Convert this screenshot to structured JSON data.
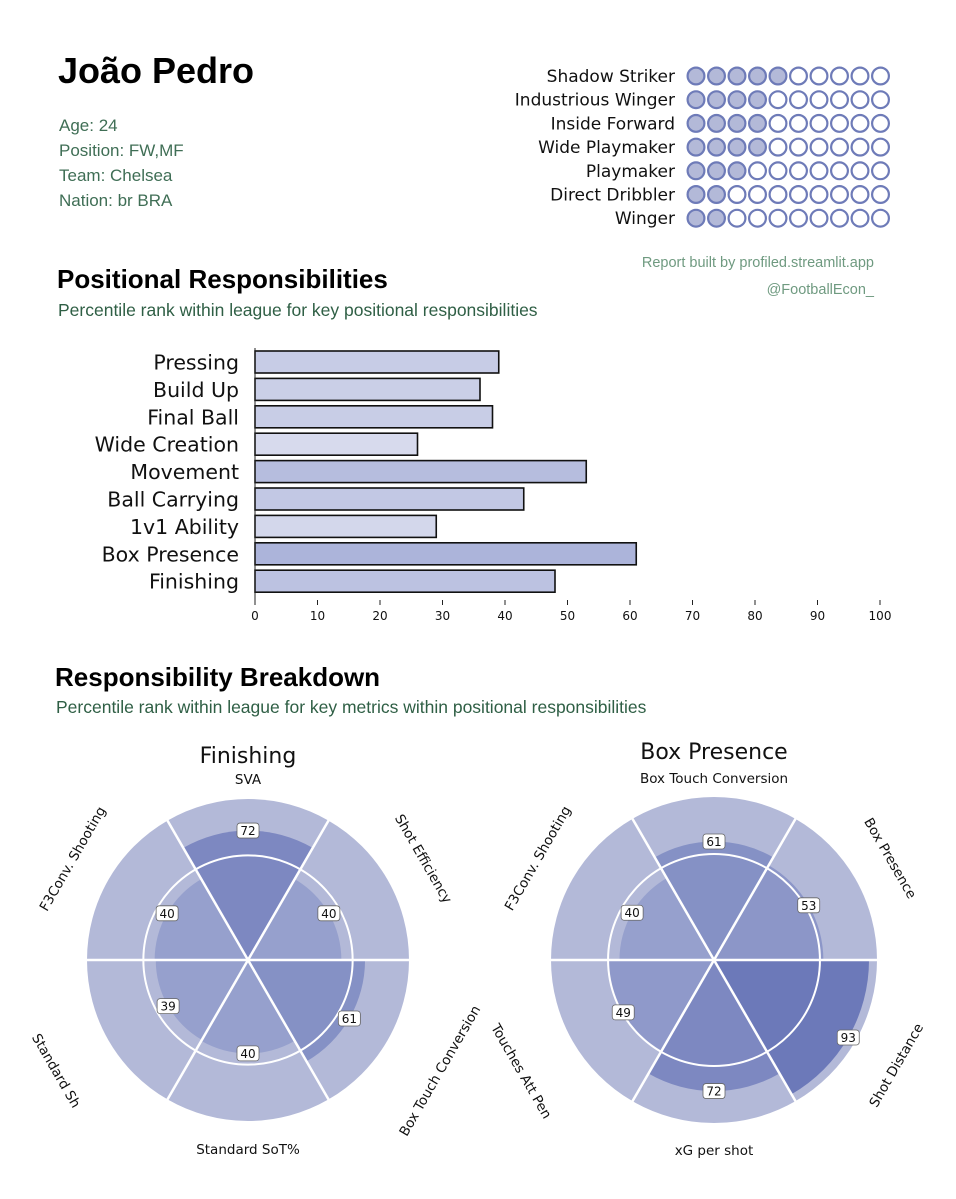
{
  "player": {
    "name": "João Pedro",
    "age": "Age: 24",
    "position": "Position: FW,MF",
    "team": "Team: Chelsea",
    "nation": "Nation: br BRA"
  },
  "credits": {
    "line1": "Report built by profiled.streamlit.app",
    "line2": "@FootballEcon_"
  },
  "sections": {
    "positional_title": "Positional Responsibilities",
    "positional_subtitle": "Percentile rank within league for key positional responsibilities",
    "breakdown_title": "Responsibility Breakdown",
    "breakdown_subtitle": "Percentile rank within league for key metrics within positional responsibilities"
  },
  "colors": {
    "bio_text": "#3f6e55",
    "credit_text": "#6f9a80",
    "dot_fill": "#b3b9d8",
    "dot_stroke": "#6e7bb8",
    "slice_background": "#b3b9d8"
  },
  "role_ratings": {
    "max_dots": 10,
    "roles": [
      {
        "label": "Shadow Striker",
        "filled": 5
      },
      {
        "label": "Industrious Winger",
        "filled": 4
      },
      {
        "label": "Inside Forward",
        "filled": 4
      },
      {
        "label": "Wide Playmaker",
        "filled": 4
      },
      {
        "label": "Playmaker",
        "filled": 3
      },
      {
        "label": "Direct Dribbler",
        "filled": 2
      },
      {
        "label": "Winger",
        "filled": 2
      }
    ]
  },
  "chart_data": [
    {
      "type": "bar",
      "orientation": "horizontal",
      "title": "Positional Responsibilities",
      "categories": [
        "Pressing",
        "Build Up",
        "Final Ball",
        "Wide Creation",
        "Movement",
        "Ball Carrying",
        "1v1 Ability",
        "Box Presence",
        "Finishing"
      ],
      "values": [
        39,
        36,
        38,
        26,
        53,
        43,
        29,
        61,
        48
      ],
      "xlim": [
        0,
        100
      ],
      "xticks": [
        "0",
        "10",
        "20",
        "30",
        "40",
        "50",
        "60",
        "70",
        "80",
        "90",
        "100"
      ]
    },
    {
      "type": "pie",
      "variant": "radial-percentile",
      "title": "Finishing",
      "slices": [
        {
          "label": "SVA",
          "value": 72
        },
        {
          "label": "Shot Efficiency",
          "value": 40
        },
        {
          "label": "Box Touch Conversion",
          "value": 61
        },
        {
          "label": "Standard SoT%",
          "value": 40
        },
        {
          "label": "Standard Sh",
          "value": 39
        },
        {
          "label": "F3Conv. Shooting",
          "value": 40
        }
      ]
    },
    {
      "type": "pie",
      "variant": "radial-percentile",
      "title": "Box Presence",
      "slices": [
        {
          "label": "Box Touch Conversion",
          "value": 61
        },
        {
          "label": "Box Presence",
          "value": 53
        },
        {
          "label": "Shot Distance",
          "value": 93
        },
        {
          "label": "xG per shot",
          "value": 72
        },
        {
          "label": "Touches Att Pen",
          "value": 49
        },
        {
          "label": "F3Conv. Shooting",
          "value": 40
        }
      ]
    }
  ]
}
